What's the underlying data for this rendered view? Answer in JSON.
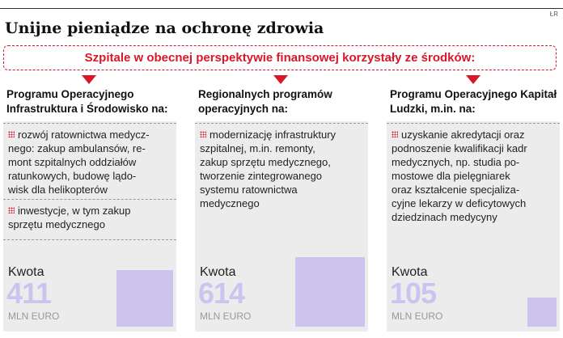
{
  "credit": "ŁR",
  "title": "Unijne pieniądze na ochronę zdrowia",
  "banner": "Szpitale w obecnej perspektywie finansowej korzystały ze środków:",
  "columns": [
    {
      "title": "Programu Operacyjnego Infrastruktura i Środowisko na:",
      "items": [
        "rozwój ratownictwa medycz-\nnego: zakup ambulansów, re-\nmont szpitalnych oddziałów\nratunkowych, budowę lądo-\nwisk dla helikopterów",
        "inwestycje, w tym zakup\nsprzętu medycznego"
      ],
      "kwota_label": "Kwota",
      "value": "411",
      "value_num": 411,
      "unit": "MLN EURO"
    },
    {
      "title": "Regionalnych programów operacyjnych na:",
      "items": [
        "modernizację infrastruktury\nszpitalnej, m.in. remonty,\nzakup sprzętu medycznego,\ntworzenie zintegrowanego\nsystemu ratownictwa\nmedycznego"
      ],
      "kwota_label": "Kwota",
      "value": "614",
      "value_num": 614,
      "unit": "MLN EURO"
    },
    {
      "title": "Programu Operacyjnego Kapitał Ludzki, m.in. na:",
      "items": [
        "uzyskanie akredytacji oraz\npodnoszenie kwalifikacji kadr\nmedycznych, np. studia po-\nmostowe dla pielęgniarek\noraz kształcenie specjaliza-\ncyjne lekarzy w deficytowych\ndziedzinach medycyny"
      ],
      "kwota_label": "Kwota",
      "value": "105",
      "value_num": 105,
      "unit": "MLN EURO"
    }
  ],
  "colors": {
    "accent": "#d7182a",
    "bar": "#cdc3ef",
    "panel": "#ececec"
  }
}
